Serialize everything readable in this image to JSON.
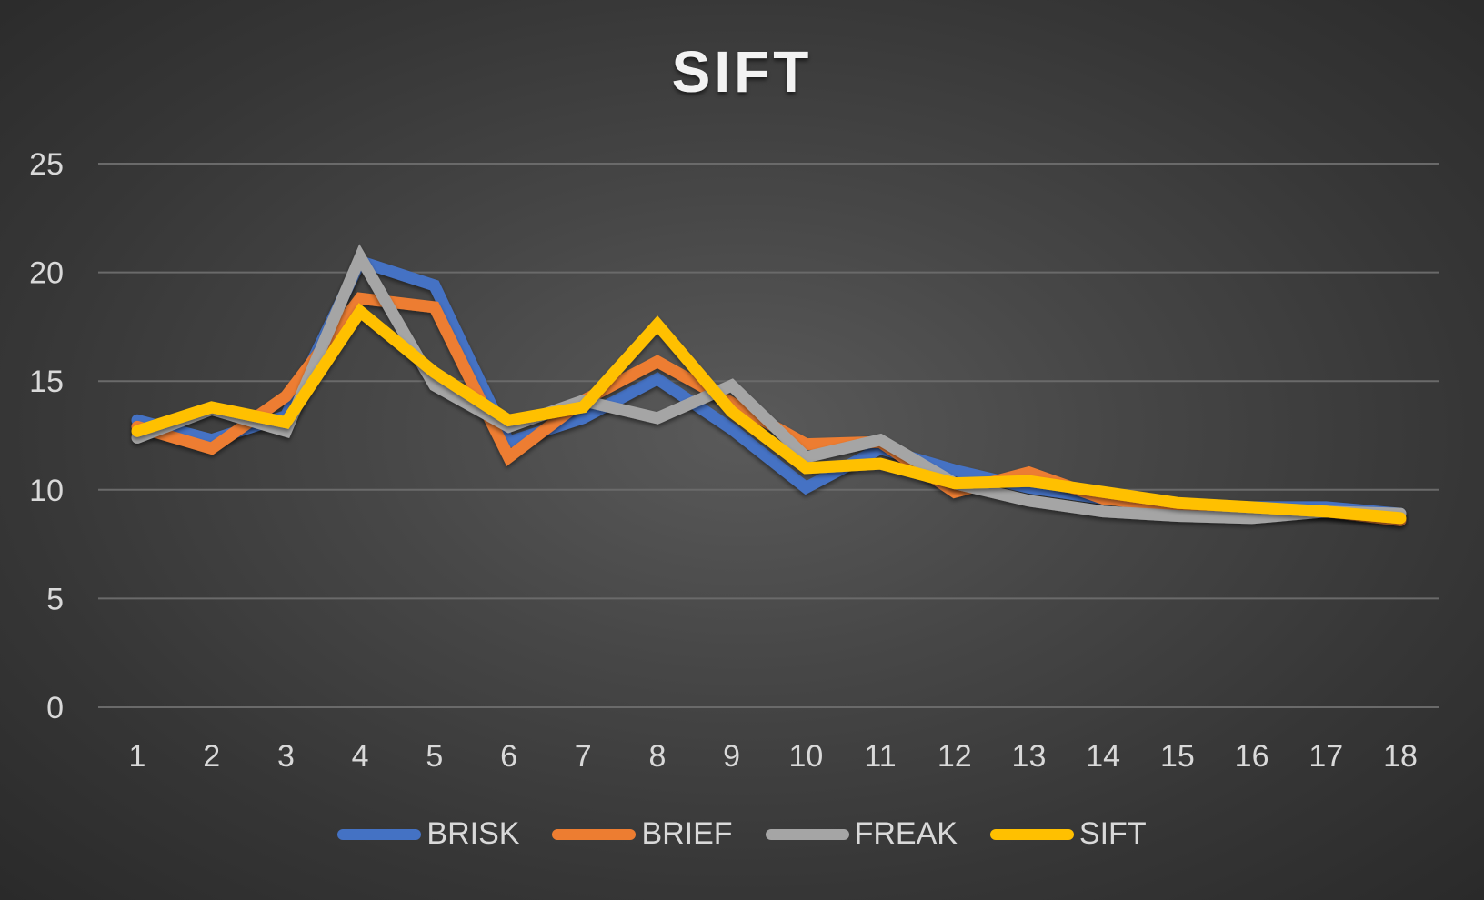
{
  "chart_data": {
    "type": "line",
    "title": "SIFT",
    "xlabel": "",
    "ylabel": "",
    "categories": [
      "1",
      "2",
      "3",
      "4",
      "5",
      "6",
      "7",
      "8",
      "9",
      "10",
      "11",
      "12",
      "13",
      "14",
      "15",
      "16",
      "17",
      "18"
    ],
    "ylim": [
      0,
      25
    ],
    "yticks": [
      0,
      5,
      10,
      15,
      20,
      25
    ],
    "grid": "horizontal",
    "legend_position": "bottom",
    "series": [
      {
        "name": "BRISK",
        "color": "#4472c4",
        "values": [
          13.2,
          12.3,
          13.4,
          20.5,
          19.4,
          12.2,
          13.3,
          15.1,
          12.8,
          10.1,
          11.9,
          10.9,
          10.1,
          9.6,
          9.3,
          9.2,
          9.2,
          8.9
        ]
      },
      {
        "name": "BRIEF",
        "color": "#ed7d31",
        "values": [
          12.9,
          11.9,
          14.3,
          18.8,
          18.4,
          11.5,
          14.1,
          15.9,
          14.0,
          12.1,
          12.2,
          9.9,
          10.8,
          9.6,
          9.2,
          9.1,
          9.0,
          8.6
        ]
      },
      {
        "name": "FREAK",
        "color": "#a5a5a5",
        "values": [
          12.4,
          13.7,
          12.7,
          20.7,
          14.8,
          12.9,
          14.1,
          13.3,
          14.8,
          11.5,
          12.3,
          10.3,
          9.5,
          9.0,
          8.8,
          8.7,
          9.0,
          8.9
        ]
      },
      {
        "name": "SIFT",
        "color": "#ffc000",
        "values": [
          12.7,
          13.8,
          13.1,
          18.2,
          15.4,
          13.2,
          13.8,
          17.6,
          13.6,
          11.0,
          11.2,
          10.3,
          10.4,
          9.9,
          9.4,
          9.2,
          9.0,
          8.7
        ]
      }
    ]
  }
}
